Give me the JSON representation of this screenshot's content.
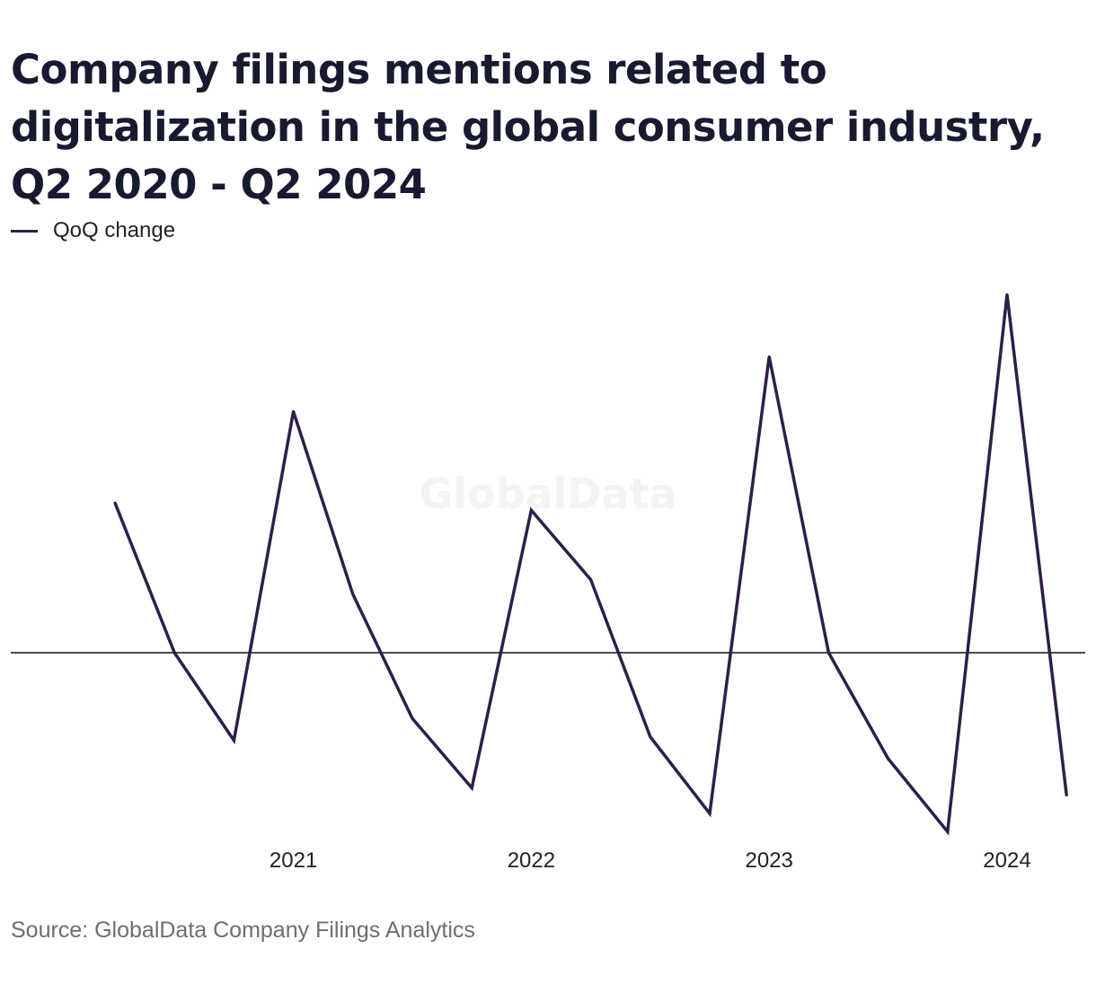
{
  "title": "Company filings mentions related to digitalization in the global consumer industry, Q2 2020 - Q2 2024",
  "source": "Source: GlobalData Company Filings Analytics",
  "watermark": "GlobalData",
  "colors": {
    "line": "#2d1f4a",
    "axis": "#111111"
  },
  "chart_data": {
    "type": "line",
    "title": "Company filings mentions related to digitalization in the global consumer industry, Q2 2020 - Q2 2024",
    "x": [
      "Q2 2020",
      "Q3 2020",
      "Q4 2020",
      "Q1 2021",
      "Q2 2021",
      "Q3 2021",
      "Q4 2021",
      "Q1 2022",
      "Q2 2022",
      "Q3 2022",
      "Q4 2022",
      "Q1 2023",
      "Q2 2023",
      "Q3 2023",
      "Q4 2023",
      "Q1 2024",
      "Q2 2024"
    ],
    "x_tick_labels": [
      "2021",
      "2022",
      "2023",
      "2024"
    ],
    "x_tick_positions": [
      "Q1 2021",
      "Q1 2022",
      "Q1 2023",
      "Q1 2024"
    ],
    "series": [
      {
        "name": "QoQ change",
        "values": [
          0.41,
          0.0,
          -0.24,
          0.66,
          0.16,
          -0.18,
          -0.37,
          0.39,
          0.2,
          -0.23,
          -0.44,
          0.81,
          0.0,
          -0.29,
          -0.49,
          0.98,
          -0.39
        ]
      }
    ],
    "ylim": [
      -0.5,
      1.0
    ],
    "zero_line": true,
    "grid": false,
    "legend": "top-left",
    "xlabel": "",
    "ylabel": ""
  }
}
